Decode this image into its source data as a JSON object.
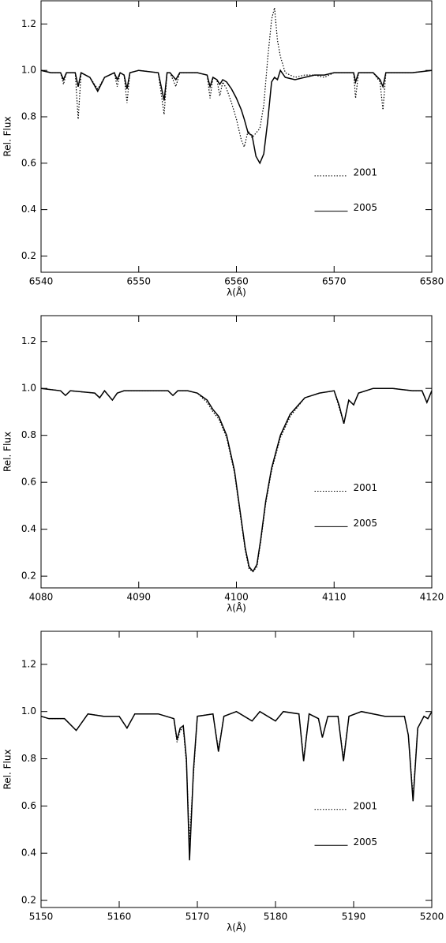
{
  "chart_data": [
    {
      "type": "line",
      "xlabel": "λ(Å)",
      "ylabel": "Rel. Flux",
      "legend": "right",
      "xlim": [
        6540,
        6580
      ],
      "ylim": [
        0.13,
        1.3
      ],
      "xticks": [
        6540,
        6550,
        6560,
        6570,
        6580
      ],
      "yticks": [
        0.2,
        0.4,
        0.6,
        0.8,
        {
          "value": 1,
          "label": "1.0"
        },
        1.2
      ],
      "x": [
        6540,
        6541,
        6542,
        6542.3,
        6542.6,
        6543,
        6543.5,
        6543.8,
        6544.1,
        6545,
        6545.8,
        6546.5,
        6547.5,
        6547.8,
        6548.1,
        6548.5,
        6548.8,
        6549.1,
        6550,
        6552,
        6552.6,
        6552.9,
        6553.2,
        6553.8,
        6554.2,
        6555,
        6556,
        6557,
        6557.3,
        6557.6,
        6558,
        6558.3,
        6558.6,
        6559,
        6559.5,
        6560,
        6560.5,
        6560.8,
        6561.2,
        6561.6,
        6562,
        6562.4,
        6562.8,
        6563.2,
        6563.6,
        6563.9,
        6564.2,
        6564.5,
        6565,
        6566,
        6567,
        6568,
        6569,
        6570,
        6571,
        6572,
        6572.2,
        6572.5,
        6573,
        6574,
        6574.7,
        6575,
        6575.3,
        6576,
        6578,
        6580
      ],
      "series": [
        {
          "name": "2001",
          "color": "#000000",
          "linestyle": "dotted",
          "values": [
            1.0,
            0.99,
            0.99,
            0.94,
            0.99,
            0.99,
            0.99,
            0.79,
            0.99,
            0.97,
            0.92,
            0.97,
            0.99,
            0.93,
            0.99,
            0.98,
            0.86,
            0.99,
            1.0,
            0.99,
            0.81,
            0.99,
            0.99,
            0.93,
            0.99,
            0.99,
            0.99,
            0.98,
            0.88,
            0.97,
            0.96,
            0.89,
            0.95,
            0.92,
            0.86,
            0.79,
            0.7,
            0.67,
            0.74,
            0.71,
            0.73,
            0.75,
            0.85,
            1.05,
            1.22,
            1.27,
            1.13,
            1.06,
            0.99,
            0.97,
            0.98,
            0.98,
            0.97,
            0.99,
            0.99,
            0.99,
            0.88,
            0.99,
            0.99,
            0.99,
            0.95,
            0.83,
            0.99,
            0.99,
            0.99,
            1.0
          ]
        },
        {
          "name": "2005",
          "color": "#000000",
          "linestyle": "solid",
          "values": [
            1.0,
            0.99,
            0.99,
            0.96,
            0.99,
            0.99,
            0.99,
            0.93,
            0.99,
            0.97,
            0.91,
            0.97,
            0.99,
            0.96,
            0.99,
            0.98,
            0.92,
            0.99,
            1.0,
            0.99,
            0.87,
            0.99,
            0.99,
            0.96,
            0.99,
            0.99,
            0.99,
            0.98,
            0.93,
            0.97,
            0.96,
            0.94,
            0.96,
            0.95,
            0.92,
            0.88,
            0.83,
            0.79,
            0.73,
            0.72,
            0.63,
            0.6,
            0.64,
            0.78,
            0.95,
            0.97,
            0.96,
            1.0,
            0.97,
            0.96,
            0.97,
            0.98,
            0.98,
            0.99,
            0.99,
            0.99,
            0.95,
            0.99,
            0.99,
            0.99,
            0.96,
            0.93,
            0.99,
            0.99,
            0.99,
            1.0
          ]
        }
      ]
    },
    {
      "type": "line",
      "xlabel": "λ(Å)",
      "ylabel": "Rel. Flux",
      "legend": "right",
      "xlim": [
        4080,
        4120
      ],
      "ylim": [
        0.15,
        1.31
      ],
      "xticks": [
        4080,
        4090,
        4100,
        4110,
        4120
      ],
      "yticks": [
        0.2,
        0.4,
        0.6,
        0.8,
        {
          "value": 1,
          "label": "1.0"
        },
        1.2
      ],
      "x": [
        4080,
        4082,
        4082.5,
        4083,
        4085.5,
        4086,
        4086.5,
        4087.3,
        4087.8,
        4088.5,
        4090,
        4093,
        4093.5,
        4094,
        4095,
        4096,
        4097,
        4097.6,
        4098.2,
        4099,
        4099.8,
        4100.4,
        4100.9,
        4101.3,
        4101.7,
        4102.1,
        4102.5,
        4103,
        4103.6,
        4104.5,
        4105.5,
        4107,
        4108.5,
        4110,
        4110.5,
        4111,
        4111.5,
        4112,
        4112.5,
        4114,
        4116,
        4118,
        4119,
        4119.5,
        4120
      ],
      "series": [
        {
          "name": "2001",
          "color": "#000000",
          "linestyle": "dotted",
          "values": [
            1.0,
            0.99,
            0.97,
            0.99,
            0.98,
            0.96,
            0.99,
            0.95,
            0.98,
            0.99,
            0.99,
            0.99,
            0.97,
            0.99,
            0.99,
            0.98,
            0.94,
            0.9,
            0.87,
            0.79,
            0.64,
            0.46,
            0.31,
            0.23,
            0.22,
            0.24,
            0.35,
            0.51,
            0.65,
            0.79,
            0.88,
            0.96,
            0.98,
            0.99,
            0.92,
            0.85,
            0.95,
            0.93,
            0.98,
            1.0,
            1.0,
            0.99,
            0.99,
            0.94,
            0.99
          ]
        },
        {
          "name": "2005",
          "color": "#000000",
          "linestyle": "solid",
          "values": [
            1.0,
            0.99,
            0.97,
            0.99,
            0.98,
            0.96,
            0.99,
            0.95,
            0.98,
            0.99,
            0.99,
            0.99,
            0.97,
            0.99,
            0.99,
            0.98,
            0.95,
            0.91,
            0.88,
            0.8,
            0.65,
            0.47,
            0.32,
            0.24,
            0.22,
            0.25,
            0.36,
            0.52,
            0.66,
            0.8,
            0.89,
            0.96,
            0.98,
            0.99,
            0.93,
            0.85,
            0.95,
            0.93,
            0.98,
            1.0,
            1.0,
            0.99,
            0.99,
            0.94,
            0.99
          ]
        }
      ]
    },
    {
      "type": "line",
      "xlabel": "λ(Å)",
      "ylabel": "Rel. Flux",
      "legend": "right",
      "xlim": [
        5150,
        5200
      ],
      "ylim": [
        0.17,
        1.34
      ],
      "xticks": [
        5150,
        5160,
        5170,
        5180,
        5190,
        5200
      ],
      "yticks": [
        0.2,
        0.4,
        0.6,
        0.8,
        {
          "value": 1,
          "label": "1.0"
        },
        1.2
      ],
      "x": [
        5150,
        5151,
        5153,
        5154.5,
        5156,
        5158,
        5160,
        5161,
        5162,
        5165,
        5167,
        5167.4,
        5167.8,
        5168.2,
        5168.6,
        5169,
        5169.5,
        5170,
        5172,
        5172.7,
        5173.4,
        5175,
        5177,
        5178,
        5180,
        5181,
        5183,
        5183.6,
        5184.3,
        5185.5,
        5186,
        5186.7,
        5188,
        5188.7,
        5189.4,
        5191,
        5194,
        5196.5,
        5197,
        5197.6,
        5198.2,
        5199,
        5199.5,
        5200
      ],
      "series": [
        {
          "name": "2001",
          "color": "#000000",
          "linestyle": "dotted",
          "values": [
            0.98,
            0.97,
            0.97,
            0.92,
            0.99,
            0.98,
            0.98,
            0.93,
            0.99,
            0.99,
            0.97,
            0.87,
            0.92,
            0.93,
            0.78,
            0.45,
            0.73,
            0.98,
            0.99,
            0.84,
            0.98,
            1.0,
            0.96,
            1.0,
            0.96,
            1.0,
            0.99,
            0.8,
            0.99,
            0.97,
            0.89,
            0.98,
            0.98,
            0.8,
            0.98,
            1.0,
            0.98,
            0.98,
            0.9,
            0.64,
            0.93,
            0.98,
            0.97,
            1.0
          ]
        },
        {
          "name": "2005",
          "color": "#000000",
          "linestyle": "solid",
          "values": [
            0.98,
            0.97,
            0.97,
            0.92,
            0.99,
            0.98,
            0.98,
            0.93,
            0.99,
            0.99,
            0.97,
            0.88,
            0.93,
            0.94,
            0.8,
            0.37,
            0.75,
            0.98,
            0.99,
            0.83,
            0.98,
            1.0,
            0.96,
            1.0,
            0.96,
            1.0,
            0.99,
            0.79,
            0.99,
            0.97,
            0.89,
            0.98,
            0.98,
            0.79,
            0.98,
            1.0,
            0.98,
            0.98,
            0.9,
            0.62,
            0.93,
            0.98,
            0.97,
            1.0
          ]
        }
      ]
    }
  ]
}
